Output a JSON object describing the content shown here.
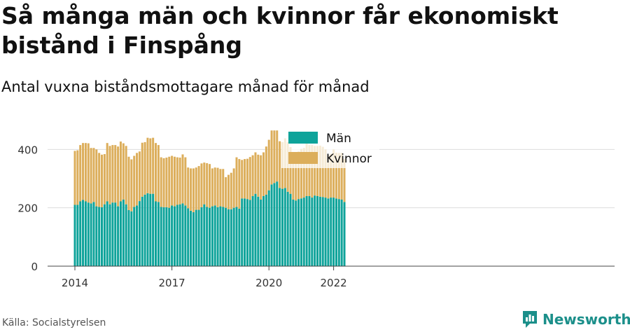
{
  "title": "Så många män och kvinnor får ekonomiskt bistånd i Finspång",
  "subtitle": "Antal vuxna biståndsmottagare månad för månad",
  "source": "Källa: Socialstyrelsen",
  "logo": {
    "name": "Newsworthy",
    "icon": "newsworthy-chart-icon",
    "color": "#1b8f8a"
  },
  "chart_data": {
    "type": "bar",
    "stacked": true,
    "start_month": "2014-01",
    "y_ticks": [
      0,
      200,
      400
    ],
    "ylim": [
      0,
      480
    ],
    "x_ticks": [
      "2014",
      "2017",
      "2020",
      "2022"
    ],
    "grid": true,
    "legend_position": "top-center",
    "colors": {
      "man": "#0ea39a",
      "kvinnor": "#dcae5b"
    },
    "categories": [
      "2014-01",
      "2014-02",
      "2014-03",
      "2014-04",
      "2014-05",
      "2014-06",
      "2014-07",
      "2014-08",
      "2014-09",
      "2014-10",
      "2014-11",
      "2014-12",
      "2015-01",
      "2015-02",
      "2015-03",
      "2015-04",
      "2015-05",
      "2015-06",
      "2015-07",
      "2015-08",
      "2015-09",
      "2015-10",
      "2015-11",
      "2015-12",
      "2016-01",
      "2016-02",
      "2016-03",
      "2016-04",
      "2016-05",
      "2016-06",
      "2016-07",
      "2016-08",
      "2016-09",
      "2016-10",
      "2016-11",
      "2016-12",
      "2017-01",
      "2017-02",
      "2017-03",
      "2017-04",
      "2017-05",
      "2017-06",
      "2017-07",
      "2017-08",
      "2017-09",
      "2017-10",
      "2017-11",
      "2017-12",
      "2018-01",
      "2018-02",
      "2018-03",
      "2018-04",
      "2018-05",
      "2018-06",
      "2018-07",
      "2018-08",
      "2018-09",
      "2018-10",
      "2018-11",
      "2018-12",
      "2019-01",
      "2019-02",
      "2019-03",
      "2019-04",
      "2019-05",
      "2019-06",
      "2019-07",
      "2019-08",
      "2019-09",
      "2019-10",
      "2019-11",
      "2019-12",
      "2020-01",
      "2020-02",
      "2020-03",
      "2020-04",
      "2020-05",
      "2020-06",
      "2020-07",
      "2020-08",
      "2020-09",
      "2020-10",
      "2020-11",
      "2020-12",
      "2021-01",
      "2021-02",
      "2021-03",
      "2021-04",
      "2021-05",
      "2021-06",
      "2021-07",
      "2021-08",
      "2021-09",
      "2021-10",
      "2021-11",
      "2021-12",
      "2022-01",
      "2022-02",
      "2022-03",
      "2022-04",
      "2022-05"
    ],
    "series": [
      {
        "name": "Män",
        "values": [
          210,
          210,
          222,
          227,
          222,
          218,
          215,
          220,
          205,
          203,
          202,
          212,
          222,
          212,
          218,
          218,
          205,
          222,
          228,
          212,
          192,
          188,
          203,
          208,
          223,
          238,
          245,
          250,
          248,
          248,
          222,
          220,
          203,
          202,
          202,
          200,
          208,
          205,
          210,
          212,
          215,
          208,
          198,
          190,
          185,
          193,
          193,
          202,
          212,
          203,
          200,
          205,
          208,
          202,
          205,
          203,
          200,
          195,
          195,
          200,
          203,
          197,
          232,
          232,
          230,
          227,
          240,
          248,
          238,
          228,
          240,
          245,
          260,
          280,
          285,
          290,
          268,
          265,
          268,
          255,
          248,
          228,
          225,
          230,
          232,
          235,
          240,
          240,
          235,
          242,
          240,
          238,
          237,
          235,
          232,
          235,
          235,
          232,
          230,
          228,
          220
        ]
      },
      {
        "name": "Kvinnor",
        "values": [
          185,
          187,
          193,
          195,
          200,
          203,
          190,
          185,
          195,
          185,
          180,
          172,
          200,
          200,
          197,
          197,
          205,
          205,
          193,
          200,
          183,
          178,
          175,
          180,
          170,
          185,
          180,
          190,
          190,
          192,
          200,
          195,
          170,
          168,
          170,
          175,
          170,
          170,
          163,
          160,
          168,
          165,
          140,
          145,
          150,
          145,
          150,
          150,
          143,
          150,
          150,
          130,
          130,
          135,
          128,
          130,
          105,
          118,
          125,
          135,
          170,
          170,
          132,
          135,
          138,
          147,
          140,
          142,
          144,
          152,
          150,
          165,
          173,
          185,
          180,
          175,
          160,
          160,
          170,
          170,
          160,
          162,
          163,
          163,
          170,
          170,
          180,
          175,
          180,
          170,
          172,
          175,
          172,
          165,
          147,
          150,
          165,
          157,
          158,
          160,
          147
        ]
      }
    ]
  }
}
